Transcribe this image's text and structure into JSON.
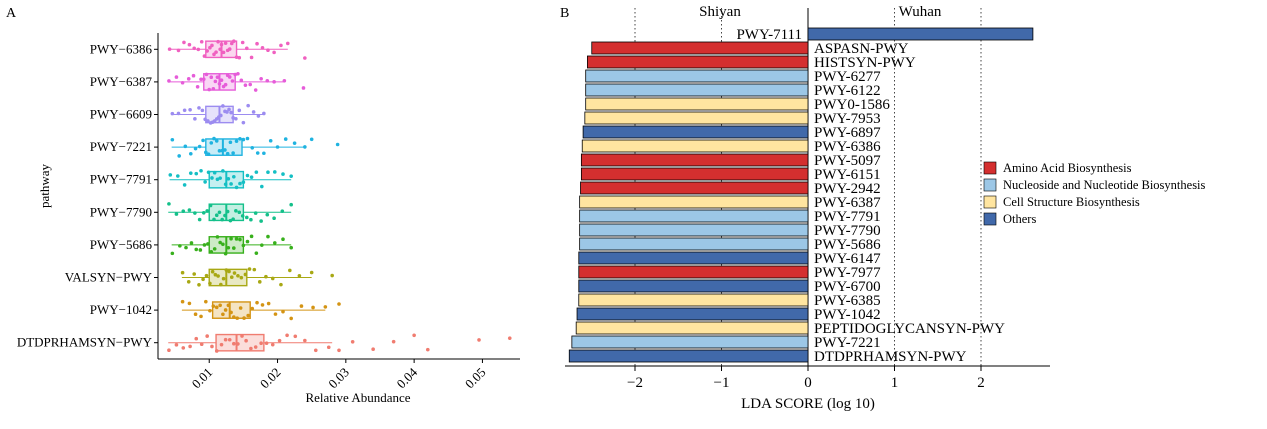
{
  "chart_data": [
    {
      "type": "boxplot-jitter",
      "panel_label": "A",
      "xlabel": "Relative Abundance",
      "ylabel": "pathway",
      "xlim": [
        0.0025,
        0.0555
      ],
      "xticks": [
        0.01,
        0.02,
        0.03,
        0.04,
        0.05
      ],
      "xtick_labels": [
        "0.01",
        "0.02",
        "0.03",
        "0.04",
        "0.05"
      ],
      "pathways": [
        {
          "name": "PWY−6386",
          "color": "#F060C0",
          "q1": 0.0095,
          "median": 0.0118,
          "q3": 0.014,
          "min": 0.004,
          "max": 0.0215,
          "points": [
            0.0042,
            0.0055,
            0.0063,
            0.0071,
            0.0078,
            0.0084,
            0.0089,
            0.0093,
            0.0097,
            0.0101,
            0.0104,
            0.0107,
            0.011,
            0.0113,
            0.0116,
            0.0118,
            0.0121,
            0.0124,
            0.0127,
            0.013,
            0.0133,
            0.0136,
            0.014,
            0.0144,
            0.0149,
            0.0155,
            0.0162,
            0.017,
            0.0178,
            0.0186,
            0.0195,
            0.0205,
            0.0215,
            0.024
          ]
        },
        {
          "name": "PWY−6387",
          "color": "#E65CD9",
          "q1": 0.0092,
          "median": 0.0115,
          "q3": 0.0138,
          "min": 0.004,
          "max": 0.021,
          "points": [
            0.0041,
            0.0052,
            0.0061,
            0.007,
            0.0077,
            0.0083,
            0.0088,
            0.0092,
            0.0096,
            0.01,
            0.0103,
            0.0106,
            0.0109,
            0.0112,
            0.0115,
            0.0118,
            0.0121,
            0.0124,
            0.0127,
            0.013,
            0.0134,
            0.0138,
            0.0142,
            0.0147,
            0.0153,
            0.016,
            0.0168,
            0.0176,
            0.0185,
            0.0195,
            0.021,
            0.0238
          ]
        },
        {
          "name": "PWY−6609",
          "color": "#9C8CF0",
          "q1": 0.0095,
          "median": 0.0115,
          "q3": 0.0135,
          "min": 0.0045,
          "max": 0.018,
          "points": [
            0.0046,
            0.0055,
            0.0064,
            0.0072,
            0.0079,
            0.0085,
            0.009,
            0.0094,
            0.0098,
            0.0102,
            0.0105,
            0.0108,
            0.0111,
            0.0114,
            0.0117,
            0.012,
            0.0123,
            0.0126,
            0.0129,
            0.0132,
            0.0135,
            0.0139,
            0.0144,
            0.015,
            0.0157,
            0.0165,
            0.0172,
            0.018
          ]
        },
        {
          "name": "PWY−7221",
          "color": "#1FB3E0",
          "q1": 0.0095,
          "median": 0.012,
          "q3": 0.0148,
          "min": 0.0045,
          "max": 0.024,
          "points": [
            0.0046,
            0.0056,
            0.0065,
            0.0073,
            0.008,
            0.0086,
            0.0091,
            0.0095,
            0.0099,
            0.0103,
            0.0107,
            0.0111,
            0.0115,
            0.0119,
            0.0123,
            0.0127,
            0.0131,
            0.0135,
            0.014,
            0.0145,
            0.015,
            0.0156,
            0.0163,
            0.0171,
            0.018,
            0.019,
            0.02,
            0.0212,
            0.0225,
            0.024,
            0.025,
            0.0288
          ]
        },
        {
          "name": "PWY−7791",
          "color": "#14BFC4",
          "q1": 0.01,
          "median": 0.0125,
          "q3": 0.015,
          "min": 0.0042,
          "max": 0.022,
          "points": [
            0.0043,
            0.0054,
            0.0064,
            0.0073,
            0.0081,
            0.0088,
            0.0094,
            0.0099,
            0.0104,
            0.0108,
            0.0112,
            0.0116,
            0.012,
            0.0124,
            0.0128,
            0.0132,
            0.0136,
            0.014,
            0.0145,
            0.015,
            0.0156,
            0.0162,
            0.0169,
            0.0177,
            0.0186,
            0.0196,
            0.0208,
            0.022
          ]
        },
        {
          "name": "PWY−7790",
          "color": "#14C08A",
          "q1": 0.01,
          "median": 0.0125,
          "q3": 0.015,
          "min": 0.004,
          "max": 0.022,
          "points": [
            0.0041,
            0.0052,
            0.0062,
            0.0071,
            0.0079,
            0.0086,
            0.0092,
            0.0097,
            0.0102,
            0.0107,
            0.0111,
            0.0115,
            0.0119,
            0.0123,
            0.0127,
            0.0131,
            0.0135,
            0.0139,
            0.0144,
            0.0149,
            0.0155,
            0.0161,
            0.0168,
            0.0176,
            0.0185,
            0.0195,
            0.0207,
            0.022
          ]
        },
        {
          "name": "PWY−5686",
          "color": "#38B01C",
          "q1": 0.01,
          "median": 0.0125,
          "q3": 0.015,
          "min": 0.0045,
          "max": 0.022,
          "points": [
            0.0046,
            0.0057,
            0.0066,
            0.0074,
            0.0081,
            0.0087,
            0.0093,
            0.0098,
            0.0103,
            0.0108,
            0.0112,
            0.0116,
            0.012,
            0.0124,
            0.0128,
            0.0132,
            0.0136,
            0.014,
            0.0145,
            0.015,
            0.0156,
            0.0162,
            0.0169,
            0.0177,
            0.0186,
            0.0196,
            0.0208,
            0.022
          ]
        },
        {
          "name": "VALSYN−PWY",
          "color": "#A8A814",
          "q1": 0.01,
          "median": 0.0125,
          "q3": 0.0155,
          "min": 0.006,
          "max": 0.025,
          "points": [
            0.0061,
            0.007,
            0.0078,
            0.0085,
            0.0091,
            0.0096,
            0.0101,
            0.0105,
            0.0109,
            0.0113,
            0.0117,
            0.0121,
            0.0125,
            0.0129,
            0.0133,
            0.0137,
            0.0142,
            0.0147,
            0.0153,
            0.0159,
            0.0166,
            0.0174,
            0.0183,
            0.0193,
            0.0205,
            0.0218,
            0.0232,
            0.025,
            0.028
          ]
        },
        {
          "name": "PWY−1042",
          "color": "#D49414",
          "q1": 0.0105,
          "median": 0.013,
          "q3": 0.016,
          "min": 0.006,
          "max": 0.027,
          "points": [
            0.0061,
            0.0071,
            0.008,
            0.0088,
            0.0095,
            0.0101,
            0.0106,
            0.0111,
            0.0116,
            0.012,
            0.0124,
            0.0128,
            0.0132,
            0.0136,
            0.0141,
            0.0146,
            0.0151,
            0.0157,
            0.0163,
            0.017,
            0.0178,
            0.0187,
            0.0197,
            0.0208,
            0.022,
            0.0235,
            0.0252,
            0.027,
            0.029
          ]
        },
        {
          "name": "DTDPRHAMSYN−PWY",
          "color": "#F07C70",
          "q1": 0.011,
          "median": 0.014,
          "q3": 0.018,
          "min": 0.004,
          "max": 0.028,
          "points": [
            0.0041,
            0.0052,
            0.0062,
            0.0072,
            0.0081,
            0.0089,
            0.0097,
            0.0104,
            0.0111,
            0.0118,
            0.0124,
            0.013,
            0.0136,
            0.0142,
            0.0148,
            0.0154,
            0.0161,
            0.0168,
            0.0176,
            0.0184,
            0.0193,
            0.0203,
            0.0214,
            0.0226,
            0.024,
            0.0256,
            0.0275,
            0.029,
            0.031,
            0.034,
            0.037,
            0.04,
            0.042,
            0.0495,
            0.054
          ]
        }
      ]
    },
    {
      "type": "bar",
      "orientation": "horizontal",
      "panel_label": "B",
      "xlabel": "LDA SCORE (log 10)",
      "group_left": "Shiyan",
      "group_right": "Wuhan",
      "xlim": [
        -2.75,
        2.8
      ],
      "xticks": [
        -2,
        -1,
        0,
        1,
        2
      ],
      "xtick_labels": [
        "−2",
        "−1",
        "0",
        "1",
        "2"
      ],
      "legend": [
        {
          "label": "Amino Acid Biosynthesis",
          "color": "#D42F2F"
        },
        {
          "label": "Nucleoside and Nucleotide Biosynthesis",
          "color": "#9CC7E6"
        },
        {
          "label": "Cell Structure Biosynthesis",
          "color": "#FFE5A0"
        },
        {
          "label": "Others",
          "color": "#4169AA"
        }
      ],
      "categories": [
        "PWY-7111",
        "ASPASN-PWY",
        "HISTSYN-PWY",
        "PWY-6277",
        "PWY-6122",
        "PWY0-1586",
        "PWY-7953",
        "PWY-6897",
        "PWY-6386",
        "PWY-5097",
        "PWY-6151",
        "PWY-2942",
        "PWY-6387",
        "PWY-7791",
        "PWY-7790",
        "PWY-5686",
        "PWY-6147",
        "PWY-7977",
        "PWY-6700",
        "PWY-6385",
        "PWY-1042",
        "PEPTIDOGLYCANSYN-PWY",
        "PWY-7221",
        "DTDPRHAMSYN-PWY"
      ],
      "values": [
        2.6,
        -2.5,
        -2.55,
        -2.57,
        -2.57,
        -2.57,
        -2.58,
        -2.6,
        -2.61,
        -2.62,
        -2.62,
        -2.63,
        -2.64,
        -2.64,
        -2.64,
        -2.64,
        -2.65,
        -2.65,
        -2.65,
        -2.65,
        -2.67,
        -2.68,
        -2.73,
        -2.76
      ],
      "groups": [
        3,
        0,
        0,
        1,
        1,
        2,
        2,
        3,
        2,
        0,
        0,
        0,
        2,
        1,
        1,
        1,
        3,
        0,
        3,
        2,
        3,
        2,
        1,
        3
      ]
    }
  ]
}
